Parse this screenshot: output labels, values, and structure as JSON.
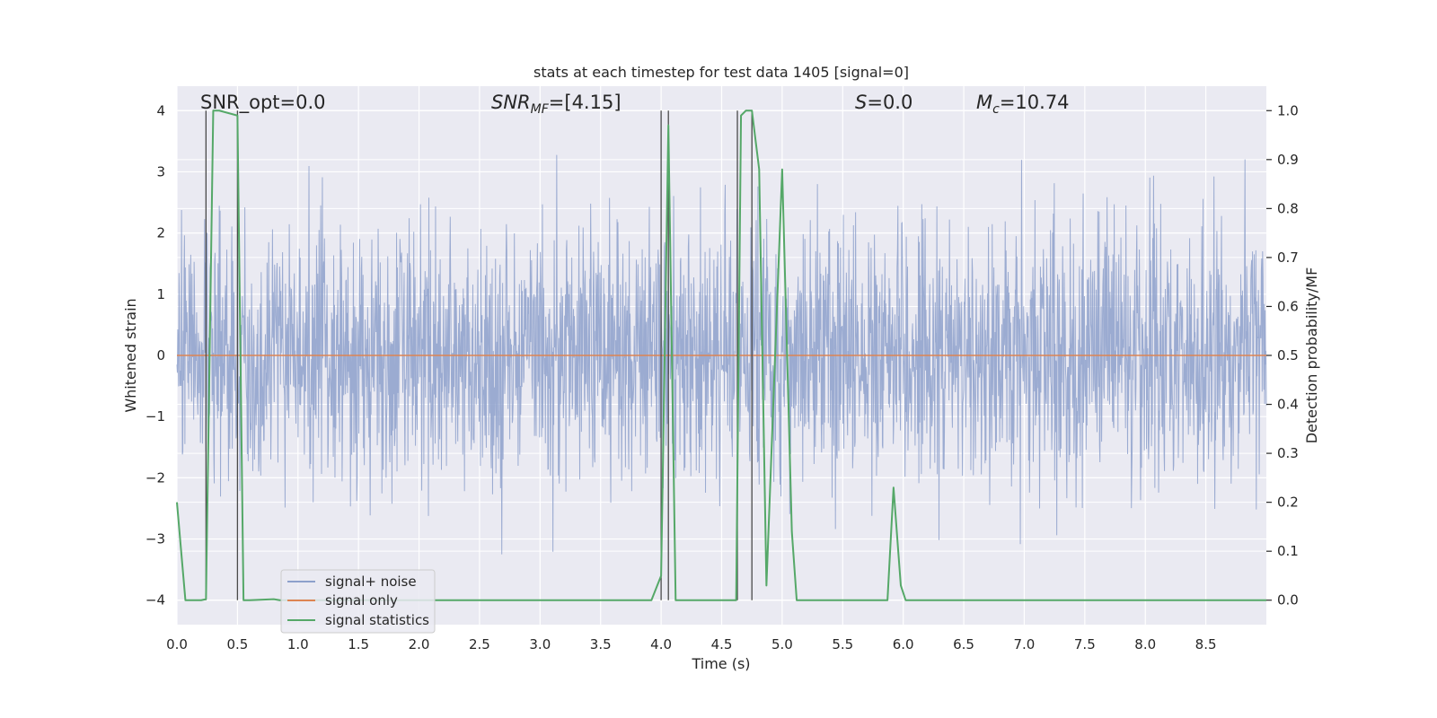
{
  "chart_data": {
    "type": "line",
    "title": "stats at each timestep for test data 1405 [signal=0]",
    "xlabel": "Time (s)",
    "ylabel": "Whitened strain",
    "ylabel_right": "Detection probability/MF",
    "xlim": [
      0,
      9
    ],
    "ylim": [
      -4.4,
      4.4
    ],
    "ylim_right": [
      -0.05,
      1.05
    ],
    "x_ticks": [
      "0.0",
      "0.5",
      "1.0",
      "1.5",
      "2.0",
      "2.5",
      "3.0",
      "3.5",
      "4.0",
      "4.5",
      "5.0",
      "5.5",
      "6.0",
      "6.5",
      "7.0",
      "7.5",
      "8.0",
      "8.5"
    ],
    "y_ticks": [
      "4",
      "3",
      "2",
      "1",
      "0",
      "−1",
      "−2",
      "−3",
      "−4"
    ],
    "y_ticks_right": [
      "1.0",
      "0.9",
      "0.8",
      "0.7",
      "0.6",
      "0.5",
      "0.4",
      "0.3",
      "0.2",
      "0.1",
      "0.0"
    ],
    "annotations": {
      "snr_opt": "SNR_opt=0.0",
      "snr_mf_main": "SNR",
      "snr_mf_sub": "MF",
      "snr_mf_value": "=[4.15]",
      "s_main": "S",
      "s_value": "=0.0",
      "mc_main": "M",
      "mc_sub": "c",
      "mc_value": "=10.74"
    },
    "legend": {
      "position": "lower-left",
      "entries": [
        {
          "name": "signal+ noise",
          "color": "#8da0cb"
        },
        {
          "name": "signal only",
          "color": "#dd8452"
        },
        {
          "name": "signal statistics",
          "color": "#55a868"
        }
      ]
    },
    "vertical_markers": [
      0.24,
      0.5,
      4.0,
      4.06,
      4.63,
      4.75
    ],
    "series": [
      {
        "name": "signal+ noise",
        "color": "#8da0cb",
        "axis": "left",
        "description": "whitened strain noise, approx. amplitude 1.5 with spikes up to 4"
      },
      {
        "name": "signal only",
        "color": "#dd8452",
        "axis": "left",
        "constant": 0
      },
      {
        "name": "signal statistics",
        "color": "#55a868",
        "axis": "right",
        "x": [
          0.0,
          0.07,
          0.2,
          0.24,
          0.3,
          0.35,
          0.5,
          0.55,
          0.6,
          0.8,
          0.85,
          3.92,
          4.0,
          4.06,
          4.12,
          4.62,
          4.66,
          4.7,
          4.75,
          4.81,
          4.87,
          5.0,
          5.08,
          5.12,
          5.87,
          5.92,
          5.98,
          6.02,
          9.0
        ],
        "values": [
          0.2,
          0.0,
          0.0,
          0.002,
          1.0,
          1.0,
          0.99,
          0.0,
          0.0,
          0.002,
          0.0,
          0.0,
          0.05,
          0.97,
          0.0,
          0.0,
          0.99,
          1.0,
          1.0,
          0.88,
          0.03,
          0.88,
          0.14,
          0.0,
          0.0,
          0.23,
          0.03,
          0.0,
          0.0
        ]
      }
    ]
  }
}
